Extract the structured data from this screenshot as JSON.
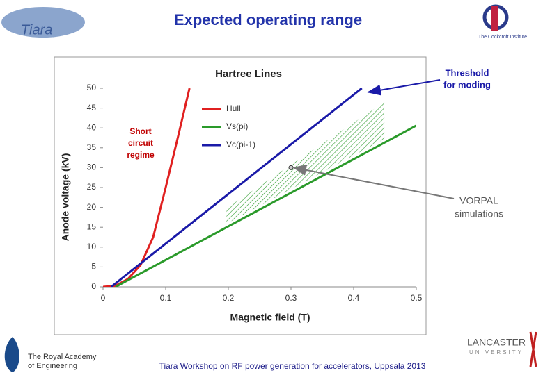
{
  "slide": {
    "title": "Expected operating range",
    "footer": "Tiara Workshop on RF power generation for accelerators, Uppsala  2013",
    "logo_tiara": "Tiara",
    "logo_cockcroft": "The Cockcroft Institute",
    "logo_lancaster": [
      "LANCASTER",
      "UNIVERSITY"
    ],
    "logo_academy": [
      "The Royal Academy",
      "of Engineering"
    ]
  },
  "chart_data": {
    "type": "line",
    "title": "Hartree Lines",
    "x_label": "Magnetic field (T)",
    "y_label": "Anode voltage (kV)",
    "xlim": [
      0,
      0.5
    ],
    "ylim": [
      0,
      50
    ],
    "xticks": [
      0,
      0.1,
      0.2,
      0.3,
      0.4,
      0.5
    ],
    "yticks": [
      0,
      5,
      10,
      15,
      20,
      25,
      30,
      35,
      40,
      45,
      50
    ],
    "legend": "upper left",
    "series": [
      {
        "name": "Hull",
        "color": "#e02020",
        "x": [
          0,
          0.02,
          0.04,
          0.06,
          0.08,
          0.1,
          0.12,
          0.138
        ],
        "values": [
          0,
          0.3,
          2,
          5.5,
          12.5,
          25,
          38,
          50
        ]
      },
      {
        "name": "Vs(pi)",
        "color": "#2a9a2a",
        "x": [
          0.02,
          0.5
        ],
        "values": [
          0,
          40.6
        ]
      },
      {
        "name": "Vc(pi-1)",
        "color": "#1a1aa8",
        "x": [
          0.013,
          0.413
        ],
        "values": [
          0,
          50
        ]
      }
    ],
    "shaded_region": {
      "color": "#2a9a2a",
      "x": [
        0.197,
        0.197,
        0.449,
        0.449
      ],
      "y": [
        15.9,
        19.8,
        46.5,
        37.2
      ]
    },
    "points": {
      "x": [
        0.3
      ],
      "y": [
        30
      ]
    },
    "annotations": [
      {
        "text": [
          "Short",
          "circuit",
          "regime"
        ],
        "color": "#c00000"
      },
      {
        "text": [
          "Threshold",
          "for moding"
        ],
        "color": "#1a1aa8",
        "x": 0.419,
        "y": 49
      },
      {
        "text": [
          "VORPAL",
          "simulations"
        ],
        "color": "#555555",
        "x": 0.3,
        "y": 30
      }
    ]
  }
}
